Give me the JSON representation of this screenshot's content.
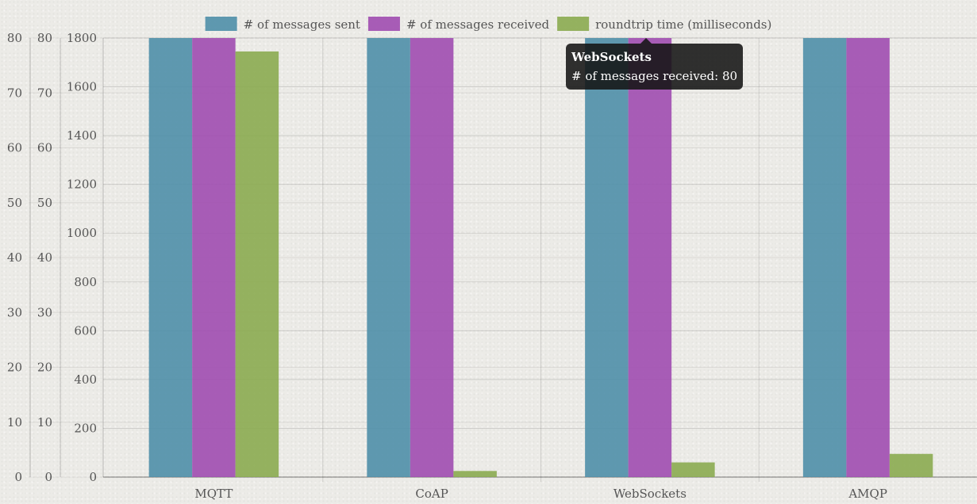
{
  "chart_data": {
    "type": "bar",
    "categories": [
      "MQTT",
      "CoAP",
      "WebSockets",
      "AMQP"
    ],
    "series": [
      {
        "name": "# of messages sent",
        "values": [
          80,
          80,
          80,
          80
        ],
        "axis": "y_left_inner",
        "color": "#4f8fa8"
      },
      {
        "name": "# of messages received",
        "values": [
          80,
          80,
          80,
          80
        ],
        "axis": "y_left_inner",
        "color": "#a04cb0"
      },
      {
        "name": "roundtrip time (milliseconds)",
        "values": [
          1745,
          25,
          60,
          95
        ],
        "axis": "y_right_main",
        "color": "#8bab50"
      }
    ],
    "axes": {
      "y_outer": {
        "ticks": [
          "0",
          "10",
          "20",
          "30",
          "40",
          "50",
          "60",
          "70",
          "80"
        ],
        "range": [
          0,
          80
        ]
      },
      "y_left_inner": {
        "ticks": [
          "0",
          "10",
          "20",
          "30",
          "40",
          "50",
          "60",
          "70",
          "80"
        ],
        "range": [
          0,
          80
        ]
      },
      "y_right_main": {
        "ticks": [
          "0",
          "200",
          "400",
          "600",
          "800",
          "1000",
          "1200",
          "1400",
          "1600",
          "1800"
        ],
        "range": [
          0,
          1800
        ]
      }
    },
    "grid": true,
    "legend_position": "top"
  },
  "tooltip": {
    "title": "WebSockets",
    "label": "# of messages received: 80"
  }
}
